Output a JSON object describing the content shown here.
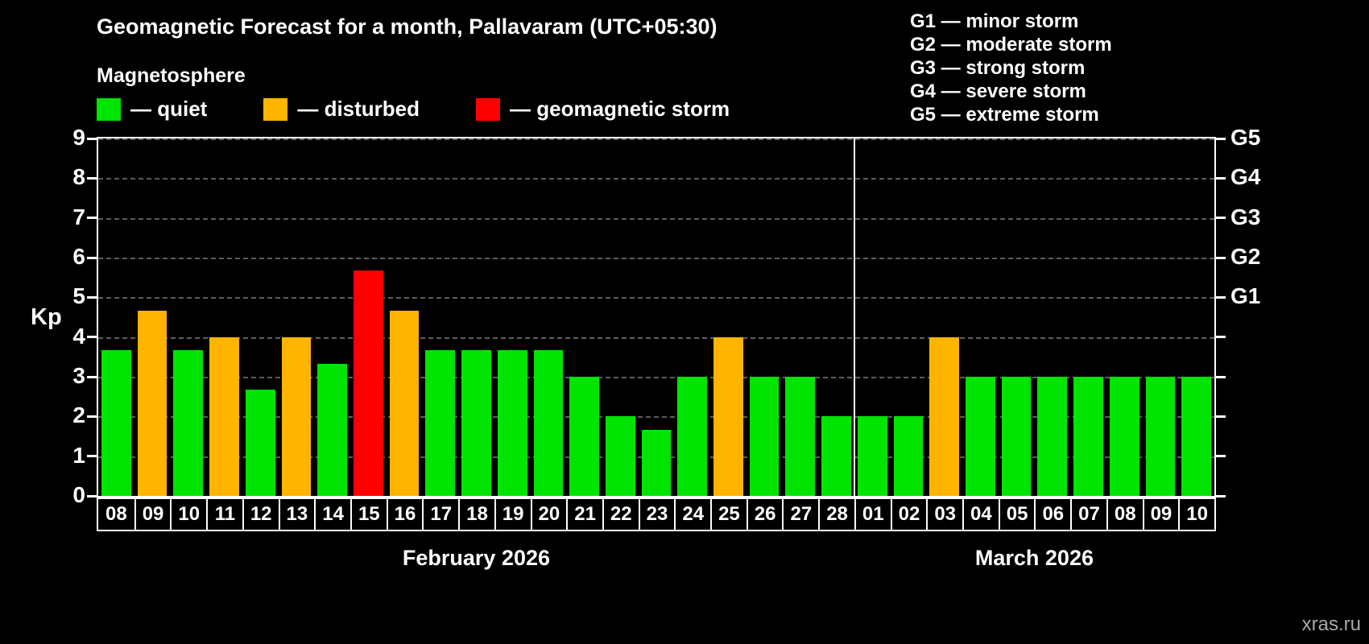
{
  "header": {
    "title": "Geomagnetic Forecast for a month, Pallavaram (UTC+05:30)",
    "subtitle": "Magnetosphere",
    "watermark": "xras.ru"
  },
  "legend": {
    "items": [
      {
        "key": "quiet",
        "label": "— quiet"
      },
      {
        "key": "disturbed",
        "label": "— disturbed"
      },
      {
        "key": "storm",
        "label": "— geomagnetic storm"
      }
    ]
  },
  "g_legend": {
    "items": [
      "G1 — minor storm",
      "G2 — moderate storm",
      "G3 — strong storm",
      "G4 — severe storm",
      "G5 — extreme storm"
    ]
  },
  "colors": {
    "quiet": "#00e400",
    "disturbed": "#ffb400",
    "storm": "#ff0000",
    "axis": "#ffffff",
    "grid": "#5d5d5d"
  },
  "chart_data": {
    "type": "bar",
    "title": "Geomagnetic Forecast for a month, Pallavaram (UTC+05:30)",
    "ylabel": "Kp",
    "ylim": [
      0,
      9
    ],
    "yticks": [
      0,
      1,
      2,
      3,
      4,
      5,
      6,
      7,
      8,
      9
    ],
    "grid": "dashed horizontal at each integer Kp level",
    "right_axis": [
      {
        "label": "G1",
        "value": 5
      },
      {
        "label": "G2",
        "value": 6
      },
      {
        "label": "G3",
        "value": 7
      },
      {
        "label": "G4",
        "value": 8
      },
      {
        "label": "G5",
        "value": 9
      }
    ],
    "months": [
      {
        "label": "February 2026",
        "days": 21
      },
      {
        "label": "March 2026",
        "days": 10
      }
    ],
    "bars": [
      {
        "day": "08",
        "value": 3.67,
        "status": "quiet"
      },
      {
        "day": "09",
        "value": 4.67,
        "status": "disturbed"
      },
      {
        "day": "10",
        "value": 3.67,
        "status": "quiet"
      },
      {
        "day": "11",
        "value": 4.0,
        "status": "disturbed"
      },
      {
        "day": "12",
        "value": 2.67,
        "status": "quiet"
      },
      {
        "day": "13",
        "value": 4.0,
        "status": "disturbed"
      },
      {
        "day": "14",
        "value": 3.33,
        "status": "quiet"
      },
      {
        "day": "15",
        "value": 5.67,
        "status": "storm"
      },
      {
        "day": "16",
        "value": 4.67,
        "status": "disturbed"
      },
      {
        "day": "17",
        "value": 3.67,
        "status": "quiet"
      },
      {
        "day": "18",
        "value": 3.67,
        "status": "quiet"
      },
      {
        "day": "19",
        "value": 3.67,
        "status": "quiet"
      },
      {
        "day": "20",
        "value": 3.67,
        "status": "quiet"
      },
      {
        "day": "21",
        "value": 3.0,
        "status": "quiet"
      },
      {
        "day": "22",
        "value": 2.0,
        "status": "quiet"
      },
      {
        "day": "23",
        "value": 1.67,
        "status": "quiet"
      },
      {
        "day": "24",
        "value": 3.0,
        "status": "quiet"
      },
      {
        "day": "25",
        "value": 4.0,
        "status": "disturbed"
      },
      {
        "day": "26",
        "value": 3.0,
        "status": "quiet"
      },
      {
        "day": "27",
        "value": 3.0,
        "status": "quiet"
      },
      {
        "day": "28",
        "value": 2.0,
        "status": "quiet"
      },
      {
        "day": "01",
        "value": 2.0,
        "status": "quiet"
      },
      {
        "day": "02",
        "value": 2.0,
        "status": "quiet"
      },
      {
        "day": "03",
        "value": 4.0,
        "status": "disturbed"
      },
      {
        "day": "04",
        "value": 3.0,
        "status": "quiet"
      },
      {
        "day": "05",
        "value": 3.0,
        "status": "quiet"
      },
      {
        "day": "06",
        "value": 3.0,
        "status": "quiet"
      },
      {
        "day": "07",
        "value": 3.0,
        "status": "quiet"
      },
      {
        "day": "08",
        "value": 3.0,
        "status": "quiet"
      },
      {
        "day": "09",
        "value": 3.0,
        "status": "quiet"
      },
      {
        "day": "10",
        "value": 3.0,
        "status": "quiet"
      }
    ]
  }
}
